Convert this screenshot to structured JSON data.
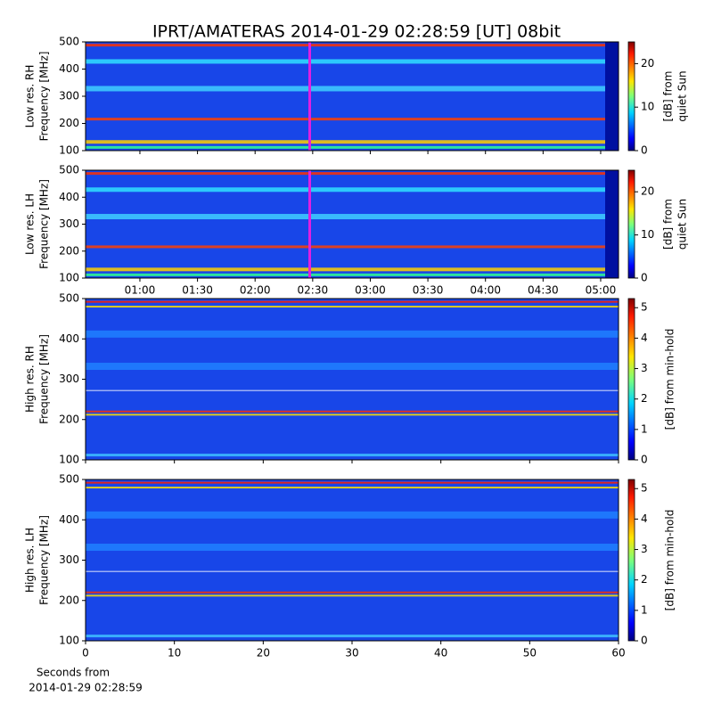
{
  "chart_data": [
    {
      "type": "spectrogram",
      "title": "IPRT/AMATERAS 2014-01-29 02:28:59 [UT]   08bit",
      "ylabel": [
        "Low res. RH",
        "Frequency [MHz]"
      ],
      "ylim": [
        100,
        500
      ],
      "yticks": [
        100,
        200,
        300,
        400,
        500
      ],
      "xlim": [
        31.7,
        309.3
      ],
      "xticks": [
        {
          "value": 60,
          "label": "01:00"
        },
        {
          "value": 90,
          "label": "01:30"
        },
        {
          "value": 120,
          "label": "02:00"
        },
        {
          "value": 150,
          "label": "02:30"
        },
        {
          "value": 180,
          "label": "03:00"
        },
        {
          "value": 210,
          "label": "03:30"
        },
        {
          "value": 240,
          "label": "04:00"
        },
        {
          "value": 270,
          "label": "04:30"
        },
        {
          "value": 300,
          "label": "05:00"
        }
      ],
      "xticklabels": false,
      "colorbar_label": [
        "[dB] from",
        "quiet Sun"
      ],
      "clim": [
        0,
        25
      ],
      "cticks": [
        0,
        10,
        20
      ],
      "colormap": "jet"
    },
    {
      "type": "spectrogram",
      "ylabel": [
        "Low res. LH",
        "Frequency [MHz]"
      ],
      "ylim": [
        100,
        500
      ],
      "yticks": [
        100,
        200,
        300,
        400,
        500
      ],
      "xlim": [
        31.7,
        309.3
      ],
      "xticks": [
        {
          "value": 60,
          "label": "01:00"
        },
        {
          "value": 90,
          "label": "01:30"
        },
        {
          "value": 120,
          "label": "02:00"
        },
        {
          "value": 150,
          "label": "02:30"
        },
        {
          "value": 180,
          "label": "03:00"
        },
        {
          "value": 210,
          "label": "03:30"
        },
        {
          "value": 240,
          "label": "04:00"
        },
        {
          "value": 270,
          "label": "04:30"
        },
        {
          "value": 300,
          "label": "05:00"
        }
      ],
      "xticklabels": true,
      "colorbar_label": [
        "[dB] from",
        "quiet Sun"
      ],
      "clim": [
        0,
        25
      ],
      "cticks": [
        0,
        10,
        20
      ],
      "colormap": "jet"
    },
    {
      "type": "spectrogram",
      "ylabel": [
        "High res. RH",
        "Frequency [MHz]"
      ],
      "ylim": [
        100,
        500
      ],
      "yticks": [
        100,
        200,
        300,
        400,
        500
      ],
      "xlim": [
        0,
        60
      ],
      "xticks": [
        0,
        10,
        20,
        30,
        40,
        50,
        60
      ],
      "xticklabels": false,
      "colorbar_label": [
        "[dB] from min-hold"
      ],
      "clim": [
        0,
        5.3
      ],
      "cticks": [
        0,
        1,
        2,
        3,
        4,
        5
      ],
      "colormap": "jet"
    },
    {
      "type": "spectrogram",
      "ylabel": [
        "High res. LH",
        "Frequency [MHz]"
      ],
      "ylim": [
        100,
        500
      ],
      "yticks": [
        100,
        200,
        300,
        400,
        500
      ],
      "xlim": [
        0,
        60
      ],
      "xticks": [
        0,
        10,
        20,
        30,
        40,
        50,
        60
      ],
      "xticklabels": true,
      "xlabel": [
        "Seconds from",
        "2014-01-29 02:28:59"
      ],
      "colorbar_label": [
        "[dB] from min-hold"
      ],
      "clim": [
        0,
        5.3
      ],
      "cticks": [
        0,
        1,
        2,
        3,
        4,
        5
      ],
      "colormap": "jet"
    }
  ]
}
